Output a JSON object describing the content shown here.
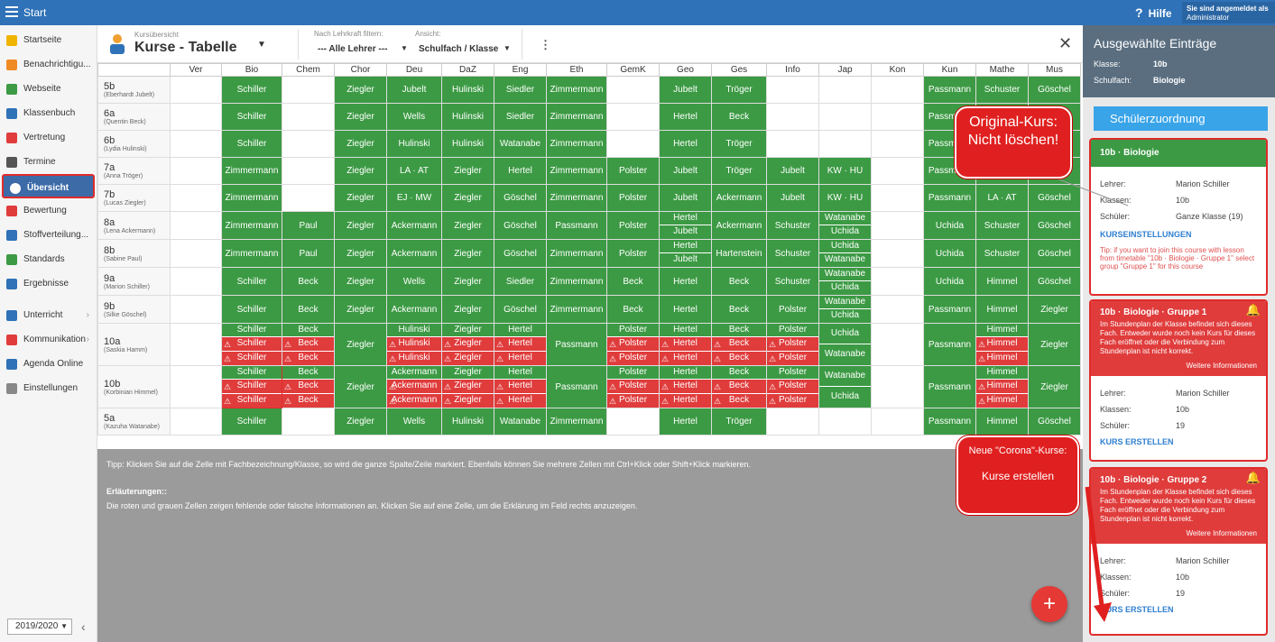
{
  "topbar": {
    "start": "Start",
    "help": "Hilfe",
    "login_line1": "Sie sind angemeldet als",
    "login_line2": "Administrator"
  },
  "sidebar": {
    "items": [
      {
        "label": "Startseite",
        "icon": "star-icon",
        "color": "#f0b400"
      },
      {
        "label": "Benachrichtigu...",
        "icon": "mail-icon",
        "color": "#f08a24"
      },
      {
        "label": "Webseite",
        "icon": "home-icon",
        "color": "#3c9a44"
      },
      {
        "label": "Klassenbuch",
        "icon": "book-icon",
        "color": "#2f72b8"
      },
      {
        "label": "Vertretung",
        "icon": "person-icon",
        "color": "#e03c3c"
      },
      {
        "label": "Termine",
        "icon": "calendar-icon",
        "color": "#555"
      },
      {
        "label": "Übersicht",
        "icon": "check-icon",
        "color": "#ffffff",
        "active": true
      },
      {
        "label": "Bewertung",
        "icon": "badge-icon",
        "color": "#e03c3c"
      },
      {
        "label": "Stoffverteilung...",
        "icon": "briefcase-icon",
        "color": "#2f72b8"
      },
      {
        "label": "Standards",
        "icon": "shield-icon",
        "color": "#3c9a44"
      },
      {
        "label": "Ergebnisse",
        "icon": "chart-icon",
        "color": "#2f72b8"
      },
      {
        "label": "Unterricht",
        "icon": "monitor-icon",
        "color": "#2f72b8",
        "arrow": true
      },
      {
        "label": "Kommunikation",
        "icon": "people-icon",
        "color": "#e03c3c",
        "arrow": true
      },
      {
        "label": "Agenda Online",
        "icon": "pen-icon",
        "color": "#2f72b8"
      },
      {
        "label": "Einstellungen",
        "icon": "gear-icon",
        "color": "#888"
      }
    ],
    "year": "2019/2020"
  },
  "header": {
    "small": "Kursübersicht",
    "title": "Kurse - Tabelle",
    "filter_label": "Nach Lehrkraft filtern:",
    "filter_value": "--- Alle Lehrer ---",
    "view_label": "Ansicht:",
    "view_value": "Schulfach / Klasse"
  },
  "columns": [
    "Ver",
    "Bio",
    "Chem",
    "Chor",
    "Deu",
    "DaZ",
    "Eng",
    "Eth",
    "GemK",
    "Geo",
    "Ges",
    "Info",
    "Jap",
    "Kon",
    "Kun",
    "Mathe",
    "Mus"
  ],
  "rows": [
    {
      "cls": "5b",
      "teacher": "(Eberhardt Jubelt)",
      "cells": [
        "",
        "Schiller",
        "",
        "Ziegler",
        "Jubelt",
        "Hulinski",
        "Siedler",
        "Zimmermann",
        "",
        "Jubelt",
        "Tröger",
        "",
        "",
        "",
        "Passmann",
        "Schuster",
        "Göschel"
      ]
    },
    {
      "cls": "6a",
      "teacher": "(Quentin Beck)",
      "cells": [
        "",
        "Schiller",
        "",
        "Ziegler",
        "Wells",
        "Hulinski",
        "Siedler",
        "Zimmermann",
        "",
        "Hertel",
        "Beck",
        "",
        "",
        "",
        "Passmann",
        "Himmel",
        "Göschel"
      ]
    },
    {
      "cls": "6b",
      "teacher": "(Lydia Hulinski)",
      "cells": [
        "",
        "Schiller",
        "",
        "Ziegler",
        "Hulinski",
        "Hulinski",
        "Watanabe",
        "Zimmermann",
        "",
        "Hertel",
        "Tröger",
        "",
        "",
        "",
        "Passmann",
        "Himmel",
        "Göschel"
      ]
    },
    {
      "cls": "7a",
      "teacher": "(Anna Tröger)",
      "cells": [
        "",
        "Zimmermann",
        "",
        "Ziegler",
        "LA · AT",
        "Ziegler",
        "Hertel",
        "Zimmermann",
        "Polster",
        "Jubelt",
        "Tröger",
        "Jubelt",
        "KW · HU",
        "",
        "Passmann",
        "Tröger",
        "Göschel"
      ]
    },
    {
      "cls": "7b",
      "teacher": "(Lucas Ziegler)",
      "cells": [
        "",
        "Zimmermann",
        "",
        "Ziegler",
        "EJ · MW",
        "Ziegler",
        "Göschel",
        "Zimmermann",
        "Polster",
        "Jubelt",
        "Ackermann",
        "Jubelt",
        "KW · HU",
        "",
        "Passmann",
        "LA · AT",
        "Göschel"
      ]
    },
    {
      "cls": "8a",
      "teacher": "(Lena Ackermann)",
      "cells": [
        "",
        "Zimmermann",
        "Paul",
        "Ziegler",
        "Ackermann",
        "Ziegler",
        "Göschel",
        "Passmann",
        "Polster",
        "Hertel|Jubelt",
        "Ackermann",
        "Schuster",
        "Watanabe|Uchida",
        "",
        "Uchida",
        "Schuster",
        "Göschel"
      ]
    },
    {
      "cls": "8b",
      "teacher": "(Sabine Paul)",
      "cells": [
        "",
        "Zimmermann",
        "Paul",
        "Ziegler",
        "Ackermann",
        "Ziegler",
        "Göschel",
        "Zimmermann",
        "Polster",
        "Hertel|Jubelt",
        "Hartenstein",
        "Schuster",
        "Uchida|Watanabe",
        "",
        "Uchida",
        "Schuster",
        "Göschel"
      ]
    },
    {
      "cls": "9a",
      "teacher": "(Marion Schiller)",
      "cells": [
        "",
        "Schiller",
        "Beck",
        "Ziegler",
        "Wells",
        "Ziegler",
        "Siedler",
        "Zimmermann",
        "Beck",
        "Hertel",
        "Beck",
        "Schuster",
        "Watanabe|Uchida",
        "",
        "Uchida",
        "Himmel",
        "Göschel"
      ]
    },
    {
      "cls": "9b",
      "teacher": "(Silke Göschel)",
      "cells": [
        "",
        "Schiller",
        "Beck",
        "Ziegler",
        "Ackermann",
        "Ziegler",
        "Göschel",
        "Zimmermann",
        "Beck",
        "Hertel",
        "Beck",
        "Polster",
        "Watanabe|Uchida",
        "",
        "Passmann",
        "Himmel",
        "Ziegler"
      ]
    },
    {
      "cls": "10a",
      "teacher": "(Saskia Hamm)",
      "cells": [
        "",
        "Schiller|!Schiller|!Schiller",
        "Beck|!Beck|!Beck",
        "Ziegler",
        "Hulinski|!Hulinski|!Hulinski",
        "Ziegler|!Ziegler|!Ziegler",
        "Hertel|!Hertel|!Hertel",
        "Passmann",
        "Polster|!Polster|!Polster",
        "Hertel|!Hertel|!Hertel",
        "Beck|!Beck|!Beck",
        "Polster|!Polster|!Polster",
        "Uchida|Watanabe",
        "",
        "Passmann",
        "Himmel|!Himmel|!Himmel",
        "Ziegler"
      ]
    },
    {
      "cls": "10b",
      "teacher": "(Korbinian Himmel)",
      "cells": [
        "",
        "Schiller|!Schiller|!Schiller",
        "Beck|!Beck|!Beck",
        "Ziegler",
        "Ackermann|!Ackermann|!Ackermann",
        "Ziegler|!Ziegler|!Ziegler",
        "Hertel|!Hertel|!Hertel",
        "Passmann",
        "Polster|!Polster|!Polster",
        "Hertel|!Hertel|!Hertel",
        "Beck|!Beck|!Beck",
        "Polster|!Polster|!Polster",
        "Watanabe|Uchida",
        "",
        "Passmann",
        "Himmel|!Himmel|!Himmel",
        "Ziegler"
      ]
    },
    {
      "cls": "5a",
      "teacher": "(Kazuha Watanabe)",
      "cells": [
        "",
        "Schiller",
        "",
        "Ziegler",
        "Wells",
        "Hulinski",
        "Watanabe",
        "Zimmermann",
        "",
        "Hertel",
        "Tröger",
        "",
        "",
        "",
        "Passmann",
        "Himmel",
        "Göschel"
      ]
    }
  ],
  "lower": {
    "tip": "Tipp: Klicken Sie auf die Zelle mit Fachbezeichnung/Klasse, so wird die ganze Spalte/Zeile markiert. Ebenfalls können Sie mehrere Zellen mit Ctrl+Klick oder Shift+Klick markieren.",
    "expl_title": "Erläuterungen::",
    "expl": "Die roten und grauen Zellen zeigen fehlende oder falsche Informationen an. Klicken Sie auf eine Zelle, um die Erklärung im Feld rechts anzuzeigen."
  },
  "fab": "+",
  "panel": {
    "title": "Ausgewählte Einträge",
    "class_label": "Klasse:",
    "class_value": "10b",
    "subject_label": "Schulfach:",
    "subject_value": "Biologie",
    "assign_button": "Schülerzuordnung",
    "card1": {
      "title": "10b · Biologie",
      "lehrer_l": "Lehrer:",
      "lehrer": "Marion Schiller",
      "klassen_l": "Klassen:",
      "klassen": "10b",
      "schueler_l": "Schüler:",
      "schueler": "Ganze Klasse (19)",
      "action": "KURSEINSTELLUNGEN",
      "tip": "Tip: if you want to join this course with lesson from timetable \"10b · Biologie · Gruppe 1\" select group \"Gruppe 1\" for this course"
    },
    "card2": {
      "title": "10b · Biologie · Gruppe 1",
      "msg": "Im Stundenplan der Klasse befindet sich dieses Fach. Entweder wurde noch kein Kurs für dieses Fach eröffnet oder die Verbindung zum Stundenplan ist nicht korrekt.",
      "more": "Weitere Informationen",
      "lehrer_l": "Lehrer:",
      "lehrer": "Marion Schiller",
      "klassen_l": "Klassen:",
      "klassen": "10b",
      "schueler_l": "Schüler:",
      "schueler": "19",
      "action": "KURS ERSTELLEN"
    },
    "card3": {
      "title": "10b · Biologie · Gruppe 2",
      "msg": "Im Stundenplan der Klasse befindet sich dieses Fach. Entweder wurde noch kein Kurs für dieses Fach eröffnet oder die Verbindung zum Stundenplan ist nicht korrekt.",
      "more": "Weitere Informationen",
      "lehrer_l": "Lehrer:",
      "lehrer": "Marion Schiller",
      "klassen_l": "Klassen:",
      "klassen": "10b",
      "schueler_l": "Schüler:",
      "schueler": "19",
      "action": "KURS ERSTELLEN"
    }
  },
  "annotations": {
    "original": "Original-Kurs: Nicht löschen!",
    "neue1": "Neue \"Corona\"-Kurse:",
    "neue2": "Kurse erstellen"
  }
}
